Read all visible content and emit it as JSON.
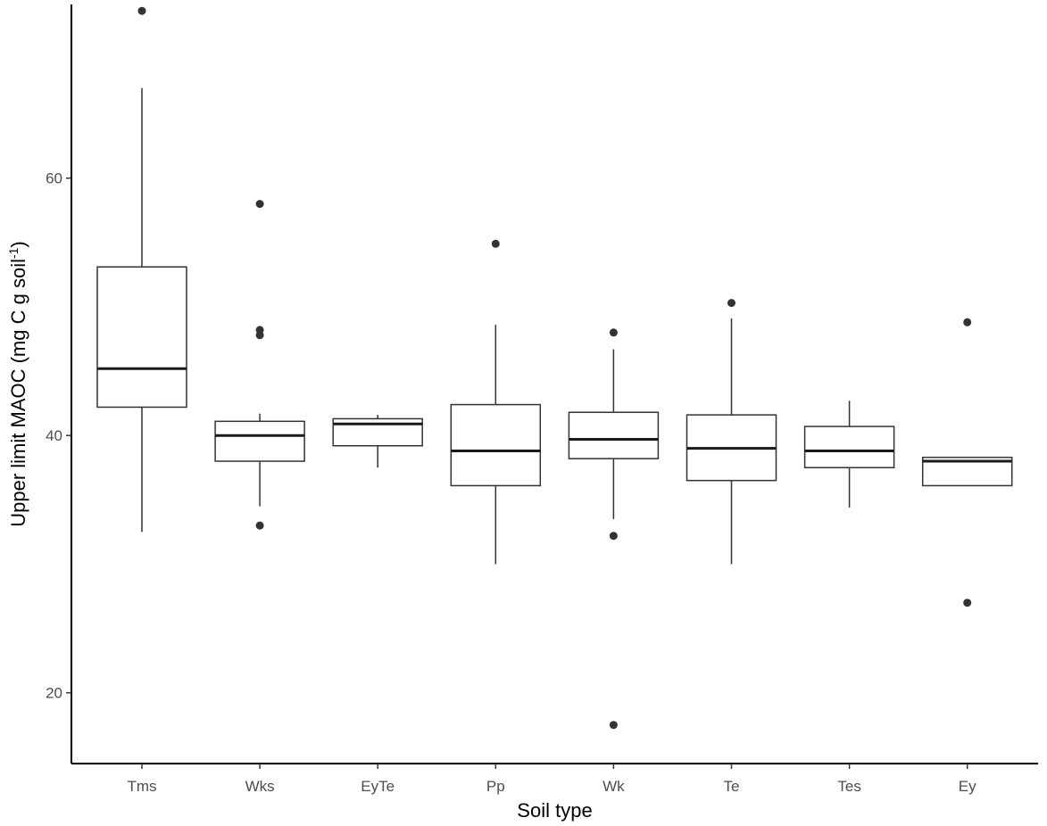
{
  "chart_data": {
    "type": "boxplot",
    "title": "",
    "xlabel": "Soil type",
    "ylabel": {
      "main": "Upper limit MAOC (mg C g soil",
      "superscript": "-1",
      "close": ")"
    },
    "ylim": [
      14.5,
      73.5
    ],
    "yticks": [
      20,
      40,
      60
    ],
    "grid": false,
    "categories": [
      "Tms",
      "Wks",
      "EyTe",
      "Pp",
      "Wk",
      "Te",
      "Tes",
      "Ey"
    ],
    "boxes": [
      {
        "category": "Tms",
        "lower_whisker": 32.5,
        "q1": 42.2,
        "median": 45.2,
        "q3": 53.1,
        "upper_whisker": 67.0,
        "outliers": [
          73.0
        ]
      },
      {
        "category": "Wks",
        "lower_whisker": 34.5,
        "q1": 38.0,
        "median": 40.0,
        "q3": 41.1,
        "upper_whisker": 41.7,
        "outliers": [
          58.0,
          48.2,
          47.8,
          33.0
        ]
      },
      {
        "category": "EyTe",
        "lower_whisker": 37.5,
        "q1": 39.2,
        "median": 40.9,
        "q3": 41.3,
        "upper_whisker": 41.6,
        "outliers": []
      },
      {
        "category": "Pp",
        "lower_whisker": 30.0,
        "q1": 36.1,
        "median": 38.8,
        "q3": 42.4,
        "upper_whisker": 48.6,
        "outliers": [
          54.9
        ]
      },
      {
        "category": "Wk",
        "lower_whisker": 33.5,
        "q1": 38.2,
        "median": 39.7,
        "q3": 41.8,
        "upper_whisker": 46.7,
        "outliers": [
          48.0,
          32.2,
          17.5
        ]
      },
      {
        "category": "Te",
        "lower_whisker": 30.0,
        "q1": 36.5,
        "median": 39.0,
        "q3": 41.6,
        "upper_whisker": 49.1,
        "outliers": [
          50.3
        ]
      },
      {
        "category": "Tes",
        "lower_whisker": 34.4,
        "q1": 37.5,
        "median": 38.8,
        "q3": 40.7,
        "upper_whisker": 42.7,
        "outliers": []
      },
      {
        "category": "Ey",
        "lower_whisker": 36.1,
        "q1": 36.1,
        "median": 38.0,
        "q3": 38.3,
        "upper_whisker": 38.3,
        "outliers": [
          48.8,
          27.0
        ]
      }
    ]
  }
}
